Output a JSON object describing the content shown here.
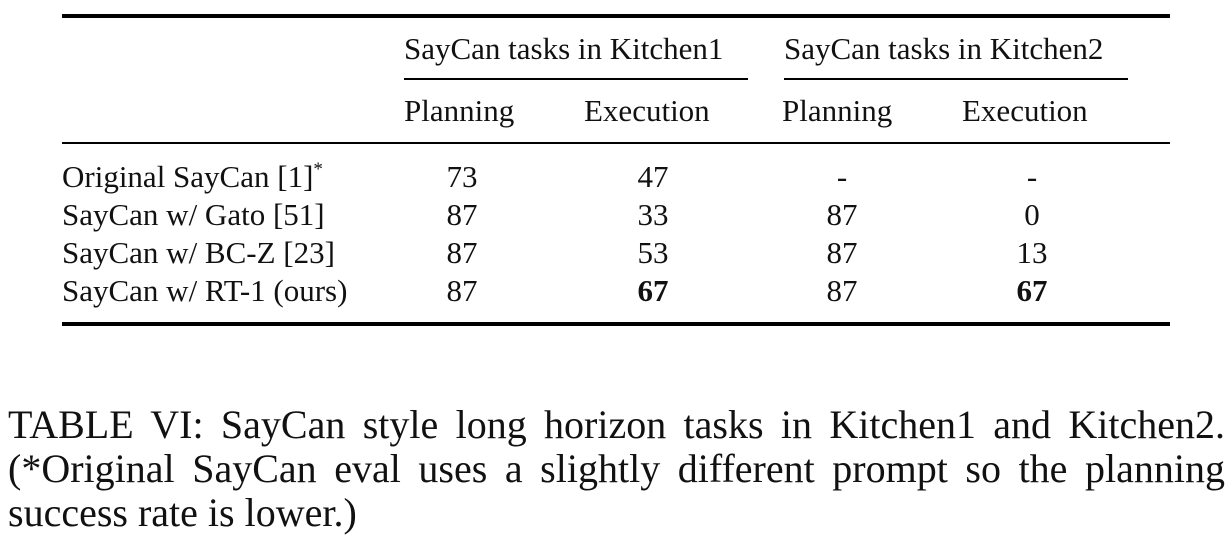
{
  "table": {
    "group_headers": [
      "SayCan tasks in Kitchen1",
      "SayCan tasks in Kitchen2"
    ],
    "sub_headers": [
      "Planning",
      "Execution",
      "Planning",
      "Execution"
    ],
    "rows": [
      {
        "label": "Original SayCan [1]",
        "label_sup": "*",
        "values": [
          "73",
          "47",
          "-",
          "-"
        ],
        "bold": [
          false,
          false,
          false,
          false
        ]
      },
      {
        "label": "SayCan w/ Gato [51]",
        "values": [
          "87",
          "33",
          "87",
          "0"
        ],
        "bold": [
          false,
          false,
          false,
          false
        ]
      },
      {
        "label": "SayCan w/ BC-Z [23]",
        "values": [
          "87",
          "53",
          "87",
          "13"
        ],
        "bold": [
          false,
          false,
          false,
          false
        ]
      },
      {
        "label": "SayCan w/ RT-1 (ours)",
        "values": [
          "87",
          "67",
          "87",
          "67"
        ],
        "bold": [
          false,
          true,
          false,
          true
        ]
      }
    ]
  },
  "caption": "TABLE VI: SayCan style long horizon tasks in Kitchen1 and Kitchen2. (*Original SayCan eval uses a slightly different prompt so the planning success rate is lower.)"
}
